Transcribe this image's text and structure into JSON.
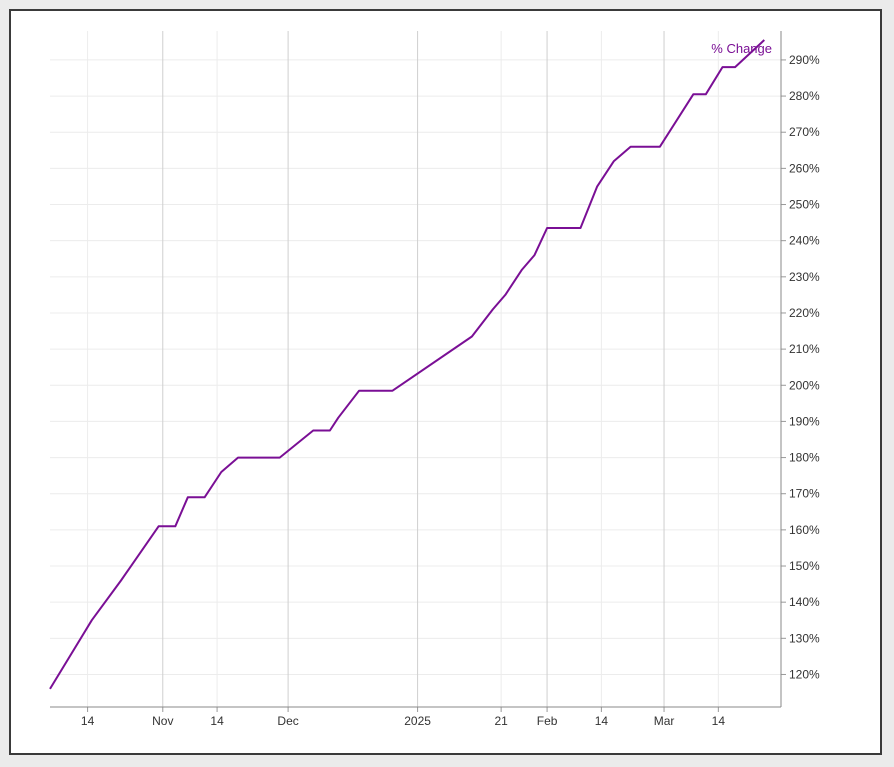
{
  "chart_data": {
    "type": "line",
    "title": "",
    "xlabel": "",
    "ylabel": "",
    "y_unit": "%",
    "grid": true,
    "y_axis_position": "right",
    "ylim": [
      111,
      298
    ],
    "xlim": [
      "2024-10-05",
      "2025-03-29"
    ],
    "yticks": [
      120,
      130,
      140,
      150,
      160,
      170,
      180,
      190,
      200,
      210,
      220,
      230,
      240,
      250,
      260,
      270,
      280,
      290
    ],
    "ytick_labels": [
      "120%",
      "130%",
      "140%",
      "150%",
      "160%",
      "170%",
      "180%",
      "190%",
      "200%",
      "210%",
      "220%",
      "230%",
      "240%",
      "250%",
      "260%",
      "270%",
      "280%",
      "290%"
    ],
    "xticks": [
      {
        "date": "2024-10-14",
        "label": "14",
        "major": false
      },
      {
        "date": "2024-11-01",
        "label": "Nov",
        "major": true
      },
      {
        "date": "2024-11-14",
        "label": "14",
        "major": false
      },
      {
        "date": "2024-12-01",
        "label": "Dec",
        "major": true
      },
      {
        "date": "2025-01-01",
        "label": "2025",
        "major": true
      },
      {
        "date": "2025-01-21",
        "label": "21",
        "major": false
      },
      {
        "date": "2025-02-01",
        "label": "Feb",
        "major": true
      },
      {
        "date": "2025-02-14",
        "label": "14",
        "major": false
      },
      {
        "date": "2025-03-01",
        "label": "Mar",
        "major": true
      },
      {
        "date": "2025-03-14",
        "label": "14",
        "major": false
      }
    ],
    "series": [
      {
        "name": "% Change",
        "color": "#7a0f95",
        "points": [
          [
            "2024-10-05",
            116
          ],
          [
            "2024-10-15",
            135
          ],
          [
            "2024-10-22",
            146
          ],
          [
            "2024-10-31",
            161
          ],
          [
            "2024-11-04",
            161
          ],
          [
            "2024-11-07",
            169
          ],
          [
            "2024-11-11",
            169
          ],
          [
            "2024-11-15",
            176
          ],
          [
            "2024-11-19",
            180
          ],
          [
            "2024-11-29",
            180
          ],
          [
            "2024-12-07",
            187.5
          ],
          [
            "2024-12-11",
            187.5
          ],
          [
            "2024-12-13",
            191
          ],
          [
            "2024-12-18",
            198.5
          ],
          [
            "2024-12-26",
            198.5
          ],
          [
            "2025-01-14",
            213.5
          ],
          [
            "2025-01-19",
            221
          ],
          [
            "2025-01-22",
            225
          ],
          [
            "2025-01-26",
            232
          ],
          [
            "2025-01-29",
            236
          ],
          [
            "2025-02-01",
            243.5
          ],
          [
            "2025-02-09",
            243.5
          ],
          [
            "2025-02-13",
            255
          ],
          [
            "2025-02-17",
            262
          ],
          [
            "2025-02-21",
            266
          ],
          [
            "2025-02-28",
            266
          ],
          [
            "2025-03-08",
            280.5
          ],
          [
            "2025-03-11",
            280.5
          ],
          [
            "2025-03-15",
            288
          ],
          [
            "2025-03-18",
            288
          ],
          [
            "2025-03-25",
            295.5
          ]
        ]
      }
    ]
  }
}
